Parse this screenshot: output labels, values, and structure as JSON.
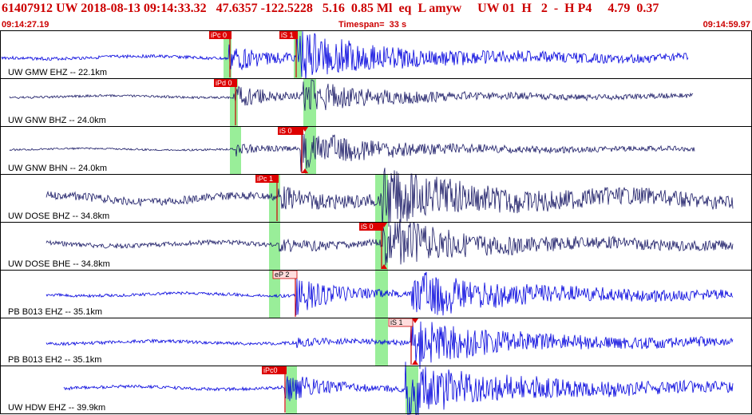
{
  "header": {
    "title": "61407912 UW 2018-08-13 09:14:33.32   47.6357 -122.5228   5.16  0.85 Ml  eq  L amyw     UW 01  H   2  -  H P4     4.79  0.37",
    "start_time": "09:14:27.19",
    "timespan": "Timespan=  33 s",
    "end_time": "09:14:59.97"
  },
  "colors": {
    "title": "#cc0000",
    "trace_blue": "#0000dd",
    "trace_dark": "#1a1a66",
    "pick_bg": "#dd0000",
    "pick_line": "#cc0000",
    "window_green": "#99ee99",
    "border": "#000000"
  },
  "panels": [
    {
      "label": "UW GMW EHZ -- 22.1km",
      "trace_color": "blue",
      "picks": [
        {
          "text": "iPc 0",
          "style": "filled"
        },
        {
          "text": "iS 1",
          "style": "filled"
        }
      ]
    },
    {
      "label": "UW GNW BHZ -- 24.0km",
      "trace_color": "dark",
      "picks": [
        {
          "text": "iPd 0",
          "style": "filled"
        }
      ]
    },
    {
      "label": "UW GNW BHN -- 24.0km",
      "trace_color": "dark",
      "picks": [
        {
          "text": "iS 0",
          "style": "filled"
        }
      ]
    },
    {
      "label": "UW DOSE BHZ -- 34.8km",
      "trace_color": "dark",
      "picks": [
        {
          "text": "iPc 1",
          "style": "filled"
        }
      ]
    },
    {
      "label": "UW DOSE BHE -- 34.8km",
      "trace_color": "dark",
      "picks": [
        {
          "text": "iS 0",
          "style": "filled"
        }
      ]
    },
    {
      "label": "PB B013 EHZ -- 35.1km",
      "trace_color": "blue",
      "picks": [
        {
          "text": "eP 2",
          "style": "outline"
        }
      ]
    },
    {
      "label": "PB B013 EH2 -- 35.1km",
      "trace_color": "blue",
      "picks": [
        {
          "text": "iS 1",
          "style": "outline"
        }
      ]
    },
    {
      "label": "UW HDW EHZ -- 39.9km",
      "trace_color": "blue",
      "picks": [
        {
          "text": "iPc0",
          "style": "filled"
        }
      ]
    }
  ]
}
